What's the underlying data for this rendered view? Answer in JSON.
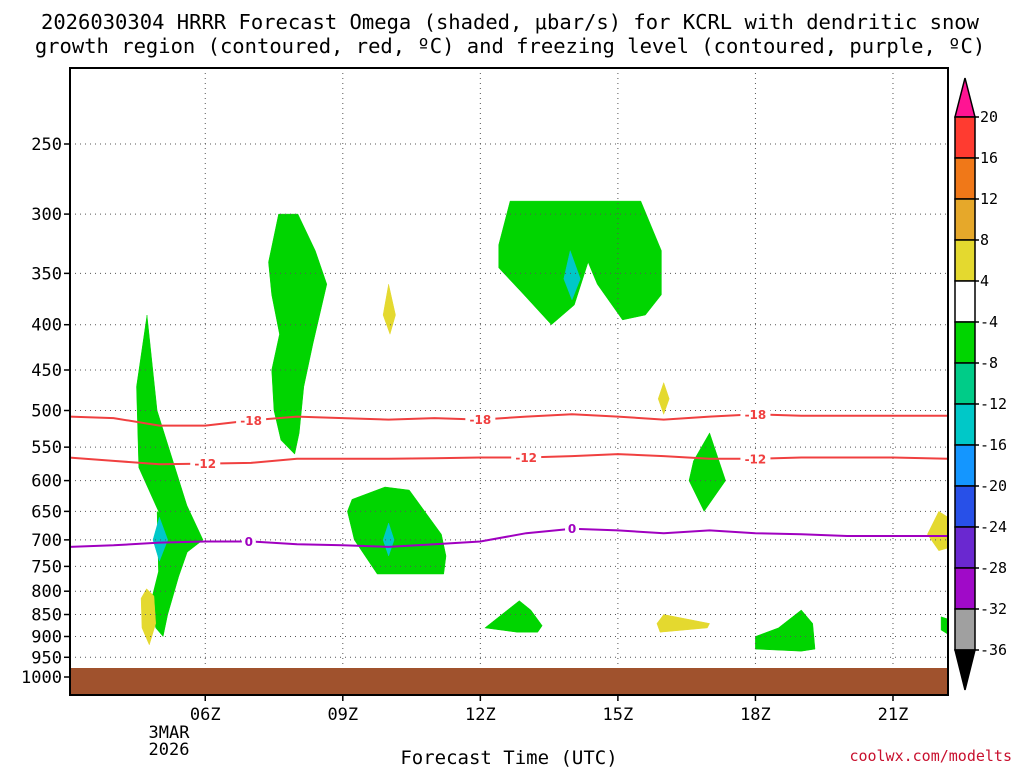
{
  "chart_data": {
    "type": "heatmap",
    "title_lines": [
      "2026030304 HRRR Forecast Omega (shaded, μbar/s) for KCRL with dendritic snow",
      "growth region (contoured, red, ºC) and freezing level (contoured, purple, ºC)"
    ],
    "xlabel": "Forecast Time (UTC)",
    "ylabel": "",
    "x_ticks": [
      "06Z",
      "09Z",
      "12Z",
      "15Z",
      "18Z",
      "21Z"
    ],
    "x_date_label": [
      "3MAR",
      "2026"
    ],
    "y_ticks": [
      250,
      300,
      350,
      400,
      450,
      500,
      550,
      600,
      650,
      700,
      750,
      800,
      850,
      900,
      950,
      1000
    ],
    "grid": true,
    "ground_color": "#a0522d",
    "colorbar": {
      "labels": [
        "20",
        "16",
        "12",
        "8",
        "4",
        "-4",
        "-8",
        "-12",
        "-16",
        "-20",
        "-24",
        "-28",
        "-32",
        "-36"
      ],
      "colors": [
        "#ff1493",
        "#ff3b30",
        "#f07818",
        "#e6a82a",
        "#e4d92f",
        "#ffffff",
        "#00d500",
        "#00cc88",
        "#00c8c8",
        "#1496ff",
        "#2850e8",
        "#6a28d0",
        "#a00ac8",
        "#a0a0a0",
        "#000000"
      ]
    },
    "omega_regions": [
      {
        "value": -5,
        "color": "#00d500",
        "points": [
          [
            4.73,
            390
          ],
          [
            4.95,
            500
          ],
          [
            5.6,
            640
          ],
          [
            5.95,
            700
          ],
          [
            5.35,
            740
          ],
          [
            5.15,
            720
          ],
          [
            4.98,
            650
          ],
          [
            4.55,
            580
          ],
          [
            4.5,
            470
          ]
        ]
      },
      {
        "value": -5,
        "color": "#00d500",
        "points": [
          [
            4.95,
            650
          ],
          [
            5.35,
            680
          ],
          [
            5.7,
            700
          ],
          [
            5.42,
            770
          ],
          [
            5.18,
            850
          ],
          [
            5.08,
            900
          ],
          [
            4.92,
            880
          ],
          [
            4.82,
            820
          ],
          [
            4.98,
            760
          ]
        ]
      },
      {
        "value": -10,
        "color": "#00c8c8",
        "points": [
          [
            5.0,
            660
          ],
          [
            5.18,
            700
          ],
          [
            5.0,
            740
          ],
          [
            4.86,
            700
          ]
        ]
      },
      {
        "value": -5,
        "color": "#00d500",
        "points": [
          [
            7.6,
            300
          ],
          [
            8.02,
            300
          ],
          [
            8.4,
            330
          ],
          [
            8.65,
            360
          ],
          [
            8.35,
            420
          ],
          [
            8.15,
            470
          ],
          [
            8.05,
            530
          ],
          [
            7.95,
            560
          ],
          [
            7.65,
            540
          ],
          [
            7.5,
            500
          ],
          [
            7.45,
            450
          ],
          [
            7.62,
            410
          ],
          [
            7.45,
            370
          ],
          [
            7.38,
            340
          ]
        ]
      },
      {
        "value": 5,
        "color": "#e4d92f",
        "points": [
          [
            10.0,
            360
          ],
          [
            10.15,
            390
          ],
          [
            10.03,
            410
          ],
          [
            9.88,
            390
          ]
        ]
      },
      {
        "value": -5,
        "color": "#00d500",
        "points": [
          [
            9.92,
            610
          ],
          [
            10.45,
            615
          ],
          [
            11.15,
            690
          ],
          [
            11.25,
            730
          ],
          [
            11.2,
            765
          ],
          [
            9.75,
            765
          ],
          [
            9.25,
            700
          ],
          [
            9.1,
            650
          ],
          [
            9.2,
            630
          ]
        ]
      },
      {
        "value": -10,
        "color": "#00c8c8",
        "points": [
          [
            10.0,
            670
          ],
          [
            10.12,
            700
          ],
          [
            10.0,
            730
          ],
          [
            9.88,
            700
          ]
        ]
      },
      {
        "value": -5,
        "color": "#00d500",
        "points": [
          [
            12.65,
            290
          ],
          [
            14.8,
            290
          ],
          [
            15.5,
            290
          ],
          [
            15.95,
            330
          ],
          [
            15.95,
            370
          ],
          [
            15.6,
            390
          ],
          [
            15.1,
            395
          ],
          [
            14.55,
            360
          ],
          [
            14.35,
            340
          ],
          [
            14.05,
            380
          ],
          [
            13.55,
            400
          ],
          [
            12.95,
            370
          ],
          [
            12.4,
            345
          ],
          [
            12.4,
            325
          ]
        ]
      },
      {
        "value": -10,
        "color": "#00c8c8",
        "points": [
          [
            13.96,
            330
          ],
          [
            14.18,
            355
          ],
          [
            14.0,
            375
          ],
          [
            13.82,
            355
          ]
        ]
      },
      {
        "value": 5,
        "color": "#e4d92f",
        "points": [
          [
            16.0,
            465
          ],
          [
            16.12,
            485
          ],
          [
            16.0,
            505
          ],
          [
            15.88,
            485
          ]
        ]
      },
      {
        "value": -5,
        "color": "#00d500",
        "points": [
          [
            17.0,
            530
          ],
          [
            17.35,
            600
          ],
          [
            16.88,
            650
          ],
          [
            16.55,
            600
          ],
          [
            16.65,
            570
          ]
        ]
      },
      {
        "value": 5,
        "color": "#e4d92f",
        "points": [
          [
            4.72,
            795
          ],
          [
            4.88,
            810
          ],
          [
            4.92,
            870
          ],
          [
            4.78,
            920
          ],
          [
            4.62,
            880
          ],
          [
            4.6,
            815
          ]
        ]
      },
      {
        "value": -5,
        "color": "#00d500",
        "points": [
          [
            12.85,
            820
          ],
          [
            13.1,
            840
          ],
          [
            13.35,
            875
          ],
          [
            13.25,
            890
          ],
          [
            12.8,
            890
          ],
          [
            12.1,
            880
          ]
        ]
      },
      {
        "value": 5,
        "color": "#e4d92f",
        "points": [
          [
            16.0,
            850
          ],
          [
            16.5,
            860
          ],
          [
            17.0,
            870
          ],
          [
            16.95,
            880
          ],
          [
            16.45,
            885
          ],
          [
            15.92,
            890
          ],
          [
            15.85,
            870
          ]
        ]
      },
      {
        "value": -5,
        "color": "#00d500",
        "points": [
          [
            19.0,
            840
          ],
          [
            19.25,
            870
          ],
          [
            19.3,
            930
          ],
          [
            19.0,
            935
          ],
          [
            18.0,
            930
          ],
          [
            18.0,
            900
          ],
          [
            18.5,
            880
          ]
        ]
      },
      {
        "value": 5,
        "color": "#e4d92f",
        "points": [
          [
            22.0,
            650
          ],
          [
            22.2,
            660
          ],
          [
            22.2,
            715
          ],
          [
            22.0,
            720
          ],
          [
            21.75,
            690
          ]
        ]
      },
      {
        "value": -5,
        "color": "#00d500",
        "points": [
          [
            22.05,
            855
          ],
          [
            22.2,
            860
          ],
          [
            22.2,
            895
          ],
          [
            22.05,
            885
          ]
        ]
      }
    ],
    "contours": [
      {
        "name": "dendritic snow growth region",
        "color": "#f04040",
        "value": -18,
        "labels": [
          [
            7.0,
            "-18"
          ],
          [
            12.0,
            "-18"
          ],
          [
            18.0,
            "-18"
          ]
        ],
        "points": [
          [
            3.0,
            508
          ],
          [
            4.0,
            510
          ],
          [
            5.0,
            520
          ],
          [
            6.0,
            520
          ],
          [
            7.0,
            513
          ],
          [
            8.0,
            508
          ],
          [
            9.0,
            510
          ],
          [
            10.0,
            512
          ],
          [
            11.0,
            510
          ],
          [
            12.0,
            512
          ],
          [
            13.0,
            508
          ],
          [
            14.0,
            505
          ],
          [
            15.0,
            508
          ],
          [
            16.0,
            512
          ],
          [
            17.0,
            508
          ],
          [
            18.0,
            505
          ],
          [
            19.0,
            507
          ],
          [
            20.0,
            507
          ],
          [
            21.0,
            507
          ],
          [
            22.2,
            507
          ]
        ]
      },
      {
        "name": "dendritic snow growth region",
        "color": "#f04040",
        "value": -12,
        "labels": [
          [
            6.0,
            "-12"
          ],
          [
            13.0,
            "-12"
          ],
          [
            18.0,
            "-12"
          ]
        ],
        "points": [
          [
            3.0,
            565
          ],
          [
            4.0,
            570
          ],
          [
            5.0,
            575
          ],
          [
            6.0,
            574
          ],
          [
            7.0,
            573
          ],
          [
            8.0,
            567
          ],
          [
            9.0,
            567
          ],
          [
            10.0,
            567
          ],
          [
            11.0,
            566
          ],
          [
            12.0,
            565
          ],
          [
            13.0,
            565
          ],
          [
            14.0,
            563
          ],
          [
            15.0,
            560
          ],
          [
            16.0,
            563
          ],
          [
            17.0,
            567
          ],
          [
            18.0,
            567
          ],
          [
            19.0,
            565
          ],
          [
            20.0,
            565
          ],
          [
            21.0,
            565
          ],
          [
            22.2,
            567
          ]
        ]
      },
      {
        "name": "freezing level",
        "color": "#a000c0",
        "value": 0,
        "labels": [
          [
            6.95,
            "0"
          ],
          [
            14.0,
            "0"
          ]
        ],
        "points": [
          [
            3.0,
            713
          ],
          [
            4.0,
            710
          ],
          [
            5.0,
            705
          ],
          [
            6.0,
            703
          ],
          [
            7.0,
            703
          ],
          [
            8.0,
            708
          ],
          [
            9.0,
            710
          ],
          [
            10.0,
            713
          ],
          [
            11.0,
            708
          ],
          [
            12.0,
            703
          ],
          [
            13.0,
            688
          ],
          [
            14.0,
            680
          ],
          [
            15.0,
            683
          ],
          [
            16.0,
            688
          ],
          [
            17.0,
            683
          ],
          [
            18.0,
            688
          ],
          [
            19.0,
            690
          ],
          [
            20.0,
            693
          ],
          [
            21.0,
            693
          ],
          [
            22.2,
            693
          ]
        ]
      }
    ]
  },
  "credit": "coolwx.com/modelts"
}
